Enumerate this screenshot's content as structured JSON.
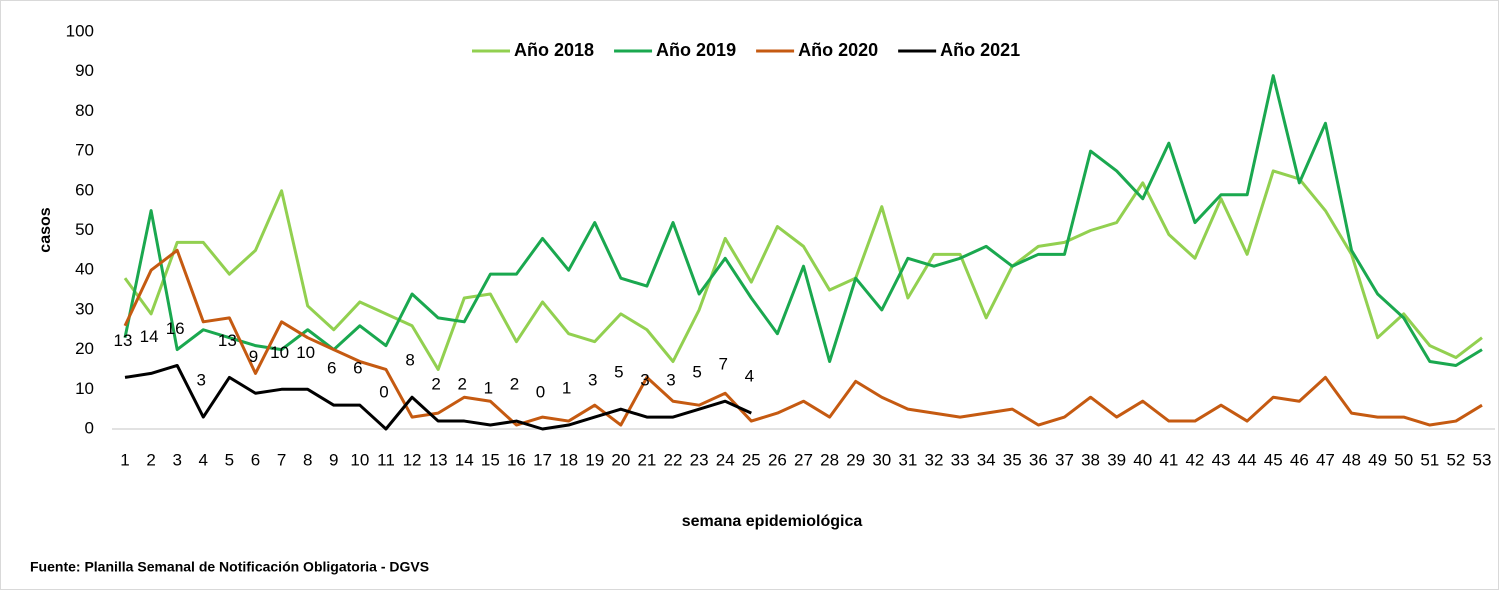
{
  "chart_data": {
    "type": "line",
    "y_label": "casos",
    "x_label": "semana epidemiológica",
    "source": "Fuente: Planilla Semanal de Notificación Obligatoria - DGVS",
    "categories": [
      1,
      2,
      3,
      4,
      5,
      6,
      7,
      8,
      9,
      10,
      11,
      12,
      13,
      14,
      15,
      16,
      17,
      18,
      19,
      20,
      21,
      22,
      23,
      24,
      25,
      26,
      27,
      28,
      29,
      30,
      31,
      32,
      33,
      34,
      35,
      36,
      37,
      38,
      39,
      40,
      41,
      42,
      43,
      44,
      45,
      46,
      47,
      48,
      49,
      50,
      51,
      52,
      53
    ],
    "ylim": [
      0,
      100
    ],
    "yticks": [
      0,
      10,
      20,
      30,
      40,
      50,
      60,
      70,
      80,
      90,
      100
    ],
    "grid": false,
    "legend": "top",
    "series": [
      {
        "name": "Año 2018",
        "color": "#92d050",
        "values": [
          38,
          29,
          47,
          47,
          39,
          45,
          60,
          31,
          25,
          32,
          29,
          26,
          15,
          33,
          34,
          22,
          32,
          24,
          22,
          29,
          25,
          17,
          30,
          48,
          37,
          51,
          46,
          35,
          38,
          56,
          33,
          44,
          44,
          28,
          41,
          46,
          47,
          50,
          52,
          62,
          49,
          43,
          58,
          44,
          65,
          63,
          55,
          44,
          23,
          29,
          21,
          18,
          23
        ]
      },
      {
        "name": "Año 2019",
        "color": "#1aa84f",
        "values": [
          23,
          55,
          20,
          25,
          23,
          21,
          20,
          25,
          20,
          26,
          21,
          34,
          28,
          27,
          39,
          39,
          48,
          40,
          52,
          38,
          36,
          52,
          34,
          43,
          33,
          24,
          41,
          17,
          38,
          30,
          43,
          41,
          43,
          46,
          41,
          44,
          44,
          70,
          65,
          58,
          72,
          52,
          59,
          59,
          89,
          62,
          77,
          45,
          34,
          28,
          17,
          16,
          20
        ]
      },
      {
        "name": "Año 2020",
        "color": "#c55a11",
        "values": [
          26,
          40,
          45,
          27,
          28,
          14,
          27,
          23,
          20,
          17,
          15,
          3,
          4,
          8,
          7,
          1,
          3,
          2,
          6,
          1,
          13,
          7,
          6,
          9,
          2,
          4,
          7,
          3,
          12,
          8,
          5,
          4,
          3,
          4,
          5,
          1,
          3,
          8,
          3,
          7,
          2,
          2,
          6,
          2,
          8,
          7,
          13,
          4,
          3,
          3,
          1,
          2,
          6
        ]
      },
      {
        "name": "Año 2021",
        "color": "#000000",
        "data_labels": true,
        "values": [
          13,
          14,
          16,
          3,
          13,
          9,
          10,
          10,
          6,
          6,
          0,
          8,
          2,
          2,
          1,
          2,
          0,
          1,
          3,
          5,
          3,
          3,
          5,
          7,
          4,
          null,
          null,
          null,
          null,
          null,
          null,
          null,
          null,
          null,
          null,
          null,
          null,
          null,
          null,
          null,
          null,
          null,
          null,
          null,
          null,
          null,
          null,
          null,
          null,
          null,
          null,
          null,
          null
        ]
      }
    ]
  }
}
